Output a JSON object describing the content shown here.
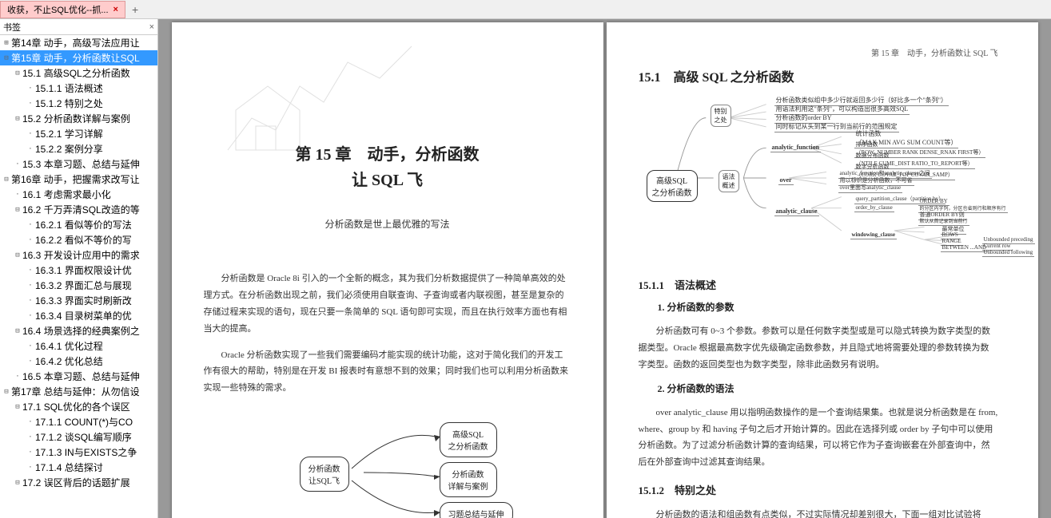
{
  "tab": {
    "title": "收获，不止SQL优化--抓...",
    "close": "×",
    "new": "+"
  },
  "sidebar": {
    "title": "书签",
    "close": "×"
  },
  "tree": [
    {
      "d": 1,
      "tw": "⊞",
      "lbl": "第14章 动手，高级写法应用让"
    },
    {
      "d": 1,
      "tw": "⊟",
      "lbl": "第15章 动手，分析函数让SQL",
      "sel": true
    },
    {
      "d": 2,
      "tw": "⊟",
      "lbl": "15.1 高级SQL之分析函数"
    },
    {
      "d": 3,
      "tw": "·",
      "lbl": "15.1.1 语法概述"
    },
    {
      "d": 3,
      "tw": "·",
      "lbl": "15.1.2 特别之处"
    },
    {
      "d": 2,
      "tw": "⊟",
      "lbl": "15.2 分析函数详解与案例"
    },
    {
      "d": 3,
      "tw": "·",
      "lbl": "15.2.1 学习详解"
    },
    {
      "d": 3,
      "tw": "·",
      "lbl": "15.2.2 案例分享"
    },
    {
      "d": 2,
      "tw": "·",
      "lbl": "15.3 本章习题、总结与延伸"
    },
    {
      "d": 1,
      "tw": "⊟",
      "lbl": "第16章 动手，把握需求改写让"
    },
    {
      "d": 2,
      "tw": "·",
      "lbl": "16.1 考虑需求最小化"
    },
    {
      "d": 2,
      "tw": "⊟",
      "lbl": "16.2 千万弄清SQL改造的等"
    },
    {
      "d": 3,
      "tw": "·",
      "lbl": "16.2.1 看似等价的写法"
    },
    {
      "d": 3,
      "tw": "·",
      "lbl": "16.2.2 看似不等价的写"
    },
    {
      "d": 2,
      "tw": "⊟",
      "lbl": "16.3 开发设计应用中的需求"
    },
    {
      "d": 3,
      "tw": "·",
      "lbl": "16.3.1 界面权限设计优"
    },
    {
      "d": 3,
      "tw": "·",
      "lbl": "16.3.2 界面汇总与展现"
    },
    {
      "d": 3,
      "tw": "·",
      "lbl": "16.3.3 界面实时刷新改"
    },
    {
      "d": 3,
      "tw": "·",
      "lbl": "16.3.4 目录树菜单的优"
    },
    {
      "d": 2,
      "tw": "⊟",
      "lbl": "16.4 场景选择的经典案例之"
    },
    {
      "d": 3,
      "tw": "·",
      "lbl": "16.4.1 优化过程"
    },
    {
      "d": 3,
      "tw": "·",
      "lbl": "16.4.2 优化总结"
    },
    {
      "d": 2,
      "tw": "·",
      "lbl": "16.5 本章习题、总结与延伸"
    },
    {
      "d": 1,
      "tw": "⊟",
      "lbl": "第17章 总结与延伸：从勿信设"
    },
    {
      "d": 2,
      "tw": "⊟",
      "lbl": "17.1 SQL优化的各个误区"
    },
    {
      "d": 3,
      "tw": "·",
      "lbl": "17.1.1 COUNT(*)与CO"
    },
    {
      "d": 3,
      "tw": "·",
      "lbl": "17.1.2 谈SQL编写顺序"
    },
    {
      "d": 3,
      "tw": "·",
      "lbl": "17.1.3 IN与EXISTS之争"
    },
    {
      "d": 3,
      "tw": "·",
      "lbl": "17.1.4 总结探讨"
    },
    {
      "d": 2,
      "tw": "⊟",
      "lbl": "17.2 误区背后的话题扩展"
    }
  ],
  "pageL": {
    "chTitle1": "第 15 章　动手，分析函数",
    "chTitle2": "让 SQL 飞",
    "subtitle": "分析函数是世上最优雅的写法",
    "p1": "分析函数是 Oracle 8i 引入的一个全新的概念，其为我们分析数据提供了一种简单高效的处理方式。在分析函数出现之前，我们必须使用自联查询、子查询或者内联视图，甚至是复杂的存储过程来实现的语句，现在只要一条简单的 SQL 语句即可实现，而且在执行效率方面也有相当大的提高。",
    "p2": "Oracle 分析函数实现了一些我们需要编码才能实现的统计功能，这对于简化我们的开发工作有很大的帮助，特别是在开发 BI 报表时有意想不到的效果；同时我们也可以利用分析函数来实现一些特殊的需求。",
    "flow": {
      "center": "分析函数\n让SQL飞",
      "n1": "高级SQL\n之分析函数",
      "n2": "分析函数\n详解与案例",
      "n3": "习题总结与延伸"
    }
  },
  "pageR": {
    "header": "第 15 章　动手，分析函数让 SQL 飞",
    "sec": "15.1　高级 SQL 之分析函数",
    "mm": {
      "root": "高级SQL\n之分析函数",
      "b1": "特别\n之处",
      "n1a": "分析函数类似组中多少行就返回多少行（好比多一个\"条列\"）",
      "n1b": "用语法利用这\"条列\"，可以构造出很多高效SQL",
      "n1c": "分析函数的order BY",
      "n1d": "同时标记从头到某一行到当前行的范围规定",
      "n2": "analytic_function",
      "n2a": "统计函数\n（MAX MIN AVG SUM COUNT等）",
      "n2b": "排序函数\n（ROW_NUMBER RANK DENSE_RNAK FIRST等）",
      "n2c": "数据分布函数\n（NTILE CUME_DIST RATIO_TO_REPORT等）",
      "n2d": "数字分析函数\n（CORR COVAR_POP COVAR_SAMP）",
      "b3": "语法\n概述",
      "n3": "over",
      "n3a": "analytic_function和analytic_clause之间",
      "n3b": "用以标识是分析函数，不可省",
      "n3c": "over里面写analytic_clause",
      "n4": "analytic_clause",
      "n4a": "query_partition_clause（partition by）",
      "n4b": "order_by_clause",
      "n4b1": "ORDER BY",
      "n4b2": "的分区内字列，分区也省则行和顺序有行",
      "n4b3": "普通ORDER BY则",
      "n4b4": "默认从首记录到当前行",
      "n5": "windowing_clause",
      "n5a": "最常单位",
      "n5b": "ROWS",
      "n5c": "RANGE",
      "n5d": "BETWEEN ...AND",
      "n5e": "Unbounded preceding",
      "n5f": "Current row",
      "n5g": "Unbounded following"
    },
    "sub1": "15.1.1　语法概述",
    "pt1": "1. 分析函数的参数",
    "p1": "分析函数可有 0~3 个参数。参数可以是任何数字类型或是可以隐式转换为数字类型的数据类型。Oracle 根据最高数字优先级确定函数参数，并且隐式地将需要处理的参数转换为数字类型。函数的返回类型也为数字类型，除非此函数另有说明。",
    "pt2": "2. 分析函数的语法",
    "p2": "over analytic_clause 用以指明函数操作的是一个查询结果集。也就是说分析函数是在 from, where、group by 和 having 子句之后才开始计算的。因此在选择列或 order by 子句中可以使用分析函数。为了过滤分析函数计算的查询结果，可以将它作为子查询嵌套在外部查询中，然后在外部查询中过滤其查询结果。",
    "sub2": "15.1.2　特别之处",
    "p3": "分析函数的语法和组函数有点类似，不过实际情况却差别很大，下面一组对比试验将"
  }
}
